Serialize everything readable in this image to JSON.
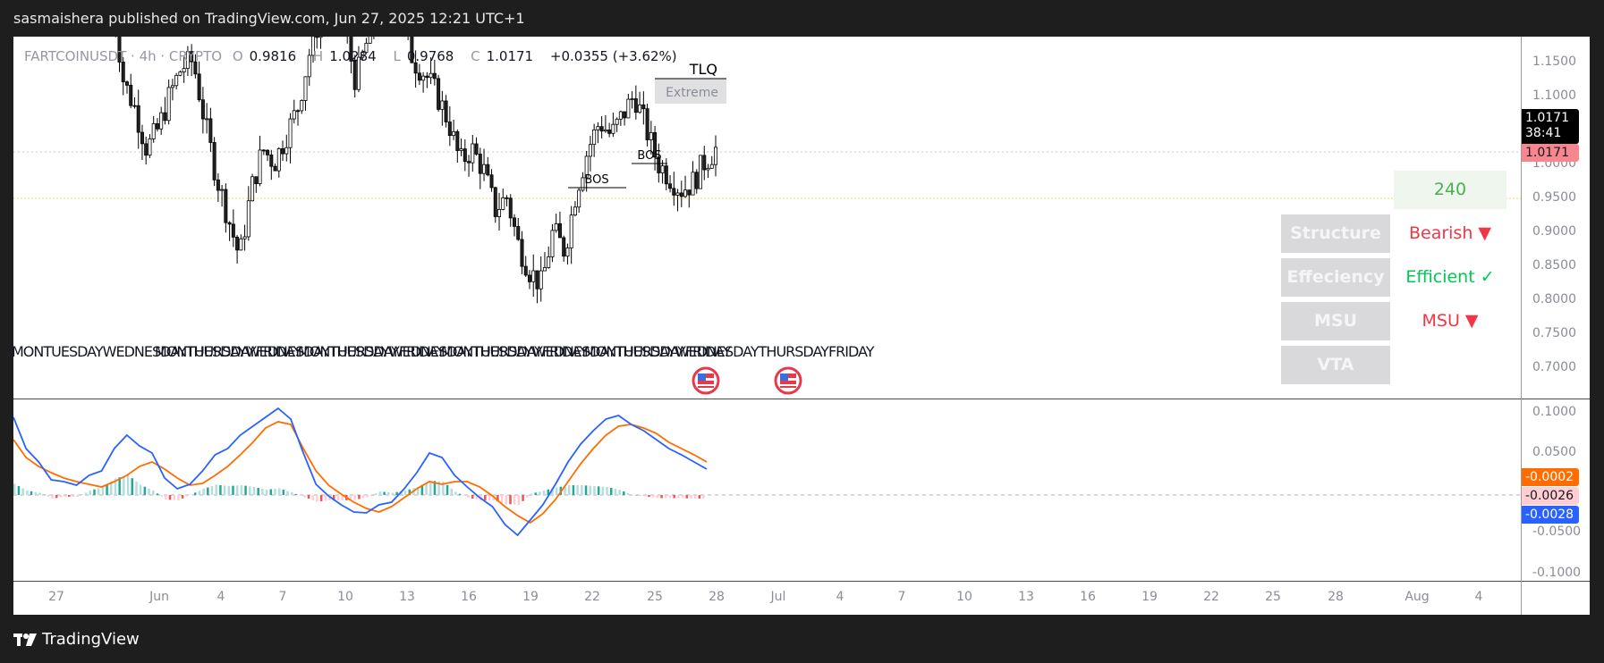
{
  "title_bar": {
    "text": "sasmaishera published on TradingView.com, Jun 27, 2025 12:21 UTC+1"
  },
  "legend": {
    "symbol": "FARTCOINUSDT · 4h · CRYPTO",
    "open_label": "O",
    "open": "0.9816",
    "high_label": "H",
    "high": "1.0284",
    "low_label": "L",
    "low": "0.9768",
    "close_label": "C",
    "close": "1.0171",
    "change": "+0.0355 (+3.62%)"
  },
  "price_axis": {
    "labels": [
      "1.1500",
      "1.1000",
      "1.0500",
      "1.0000",
      "0.9500",
      "0.9000",
      "0.8500",
      "0.8000",
      "0.7500",
      "0.7000"
    ],
    "last_price": "1.0171",
    "countdown": "38:41",
    "last_price_tag": "1.0171",
    "last_tag_color": "#f7868f"
  },
  "macd_axis": {
    "labels": [
      "0.1000",
      "0.0500",
      "-0.0500",
      "-0.1000"
    ],
    "signal_tag": "-0.0002",
    "hist_tag": "-0.0026",
    "macd_tag": "-0.0028",
    "signal_color": "#ff6d00",
    "hist_color": "#ffcdd2",
    "macd_color": "#2962ff"
  },
  "time_axis": {
    "labels": [
      "27",
      "Jun",
      "4",
      "7",
      "10",
      "13",
      "16",
      "19",
      "22",
      "25",
      "28",
      "Jul",
      "4",
      "7",
      "10",
      "13",
      "16",
      "19",
      "22",
      "25",
      "28",
      "Aug",
      "4"
    ]
  },
  "annotations": {
    "bos_1": "BOS",
    "bos_2": "BOS",
    "tlq": "TLQ",
    "extreme": "Extreme"
  },
  "day_labels": [
    "MONTUESDAYWEDNESDAYTHURSDAYFRIDAY",
    "MONTUESDAYWEDNESDAYTHURSDAYFRIDAY",
    "MONTUESDAYWEDNESDAYTHURSDAYFRIDAY",
    "MONTUESDAYWEDNESDAYTHURSDAYFRIDAY",
    "MONTUESDAYWEDNESDAYTHURSDAYFRIDAY"
  ],
  "events": [
    {
      "icon": "us-flag-icon"
    },
    {
      "icon": "us-flag-icon"
    }
  ],
  "dashboard": {
    "timeframe": "240",
    "rows": [
      {
        "label": "Structure",
        "value": "Bearish ▼",
        "color": "#f23645"
      },
      {
        "label": "Effeciency",
        "value": "Efficient ✓",
        "color": "#00c853"
      },
      {
        "label": "MSU",
        "value": "MSU ▼",
        "color": "#f23645"
      },
      {
        "label": "VTA",
        "value": "",
        "color": "#000"
      }
    ]
  },
  "footer": {
    "brand": "TradingView"
  },
  "chart_data": {
    "type": "candlestick",
    "title": "FARTCOINUSDT · 4h · CRYPTO",
    "ylim": [
      0.68,
      1.18
    ],
    "path": [
      1.25,
      1.12,
      1.08,
      1.02,
      1.05,
      1.1,
      1.14,
      1.15,
      1.06,
      0.98,
      0.92,
      0.86,
      0.96,
      1.02,
      1.0,
      1.04,
      1.08,
      1.16,
      1.22,
      1.24,
      1.2,
      1.12,
      1.18,
      1.22,
      1.24,
      1.2,
      1.15,
      1.13,
      1.1,
      1.06,
      1.0,
      1.02,
      0.99,
      0.93,
      0.95,
      0.88,
      0.84,
      0.82,
      0.9,
      0.87,
      0.96,
      1.02,
      1.06,
      1.04,
      1.07,
      1.1,
      1.05,
      1.0,
      0.98,
      0.96,
      0.97,
      1.0,
      1.02
    ],
    "macd": {
      "colors": {
        "macd": "#2962ff",
        "signal": "#ff6d00",
        "hist_up": "#26a69a",
        "hist_down": "#ef5350"
      }
    }
  }
}
